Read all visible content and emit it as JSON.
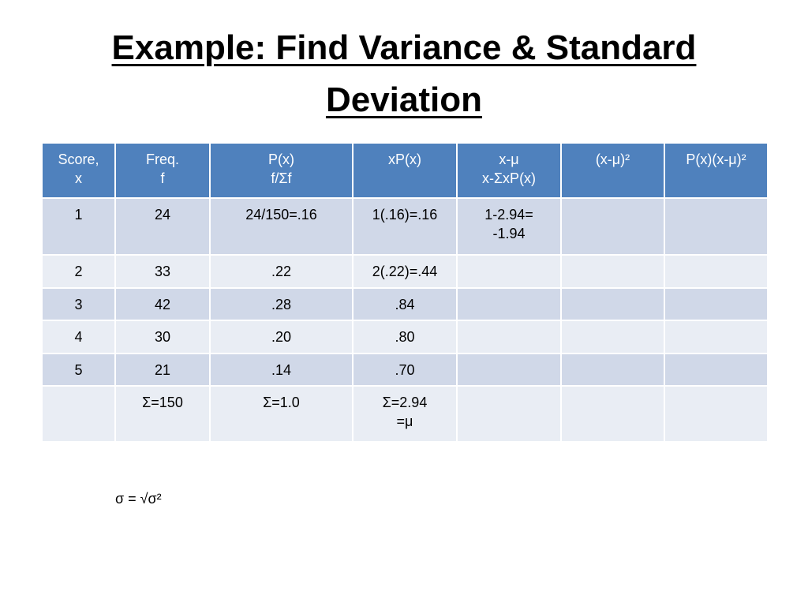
{
  "title": [
    "Example: Find Variance & Standard",
    "Deviation"
  ],
  "table": {
    "header": [
      [
        "Score,",
        "x"
      ],
      [
        "Freq.",
        "f"
      ],
      [
        "P(x)",
        "f/Σf"
      ],
      [
        "xP(x)"
      ],
      [
        "x-μ",
        "x-ΣxP(x)"
      ],
      [
        "(x-μ)²"
      ],
      [
        "P(x)(x-μ)²"
      ]
    ],
    "rows": [
      [
        [
          "1"
        ],
        [
          "24"
        ],
        [
          "24/150=.16"
        ],
        [
          "1(.16)=.16"
        ],
        [
          "1-2.94=",
          "-1.94"
        ],
        [],
        []
      ],
      [
        [
          "2"
        ],
        [
          "33"
        ],
        [
          ".22"
        ],
        [
          "2(.22)=.44"
        ],
        [],
        [],
        []
      ],
      [
        [
          "3"
        ],
        [
          "42"
        ],
        [
          ".28"
        ],
        [
          ".84"
        ],
        [],
        [],
        []
      ],
      [
        [
          "4"
        ],
        [
          "30"
        ],
        [
          ".20"
        ],
        [
          ".80"
        ],
        [],
        [],
        []
      ],
      [
        [
          "5"
        ],
        [
          "21"
        ],
        [
          ".14"
        ],
        [
          ".70"
        ],
        [],
        [],
        []
      ],
      [
        [],
        [
          "Σ=150"
        ],
        [
          "Σ=1.0"
        ],
        [
          "Σ=2.94",
          "=μ"
        ],
        [],
        [],
        []
      ]
    ]
  },
  "formula": "σ = √σ²"
}
